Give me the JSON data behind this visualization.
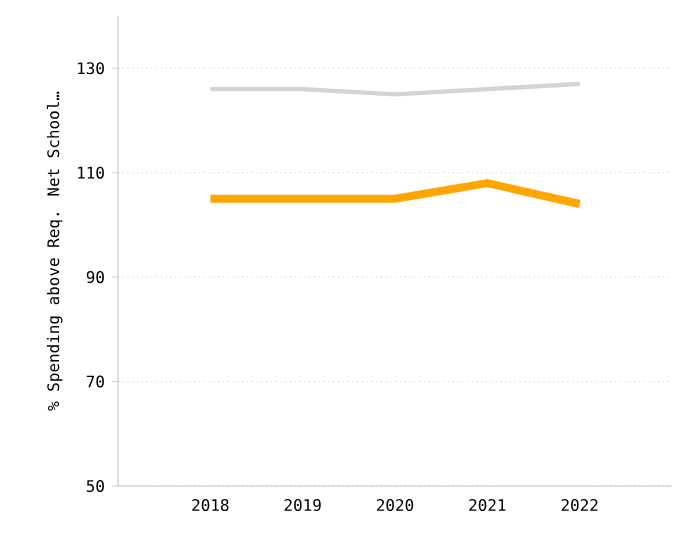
{
  "chart_data": {
    "type": "line",
    "ylabel": "% Spending above Req. Net School…",
    "categories": [
      "2018",
      "2019",
      "2020",
      "2021",
      "2022"
    ],
    "series": [
      {
        "color": "#d3d3d3",
        "values": [
          126,
          126,
          125,
          126,
          127
        ]
      },
      {
        "color": "#ffa500",
        "values": [
          105,
          105,
          105,
          108,
          104
        ]
      }
    ],
    "ylim": [
      50,
      140
    ],
    "yticks": [
      50,
      70,
      90,
      110,
      130
    ],
    "grid": "y",
    "marker": "none",
    "line_style": "solid"
  }
}
